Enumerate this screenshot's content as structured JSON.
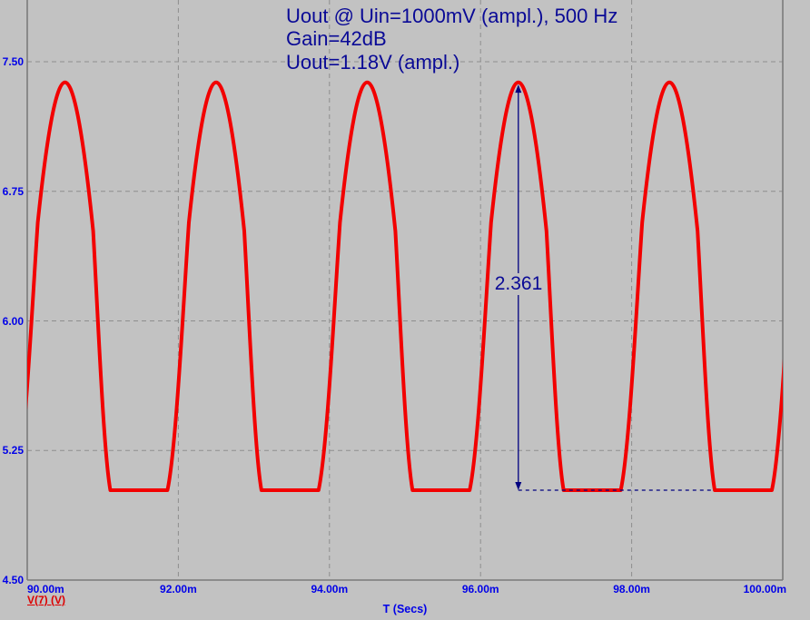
{
  "window": {
    "background": "#c2c2c2"
  },
  "title_block": {
    "lines": [
      "Uout @ Uin=1000mV (ampl.), 500 Hz",
      "Gain=42dB",
      "Uout=1.18V (ampl.)"
    ]
  },
  "colors": {
    "background": "#c2c2c2",
    "grid": "#8e8e8e",
    "border": "#7b7b7b",
    "trace": "#f20000",
    "tick_text": "#0000e8",
    "title_text": "#0a0a96",
    "annotation": "#000080",
    "legend_text": "#dd0000"
  },
  "chart_data": {
    "type": "line",
    "title": "Uout @ Uin=1000mV (ampl.), 500 Hz",
    "annotations_text": [
      "Gain=42dB",
      "Uout=1.18V (ampl.)"
    ],
    "xlabel": "T (Secs)",
    "ylabel": "",
    "grid": true,
    "x_range_ms": [
      90,
      100
    ],
    "y_range_v": [
      4.5,
      7.857
    ],
    "x_ticks": [
      {
        "label": "90.00m",
        "ms": 90,
        "align": "left"
      },
      {
        "label": "92.00m",
        "ms": 92,
        "align": "center"
      },
      {
        "label": "94.00m",
        "ms": 94,
        "align": "center"
      },
      {
        "label": "96.00m",
        "ms": 96,
        "align": "center"
      },
      {
        "label": "98.00m",
        "ms": 98,
        "align": "center"
      },
      {
        "label": "100.00m",
        "ms": 100,
        "align": "right"
      }
    ],
    "y_ticks": [
      {
        "label": "7.50",
        "v": 7.5
      },
      {
        "label": "6.75",
        "v": 6.75
      },
      {
        "label": "6.00",
        "v": 6.0
      },
      {
        "label": "5.25",
        "v": 5.25
      },
      {
        "label": "4.50",
        "v": 4.5
      }
    ],
    "series": [
      {
        "name": "V(7) (V)",
        "color": "#f20000",
        "waveform": {
          "kind": "amplifier-output-clipped-sine",
          "frequency_hz": 500,
          "period_ms": 2,
          "first_peak_t_ms": 90.5,
          "peak_v": 7.38,
          "clip_v": 5.02,
          "rise_shoulder": {
            "dt_ms": -0.36,
            "v": 6.57
          },
          "fall_shoulder": {
            "dt_ms": 0.372,
            "v": 6.52
          },
          "clip_start_dt_ms": 0.6,
          "clip_end_dt_ms": 1.3556
        }
      }
    ],
    "measurement": {
      "label": "2.361",
      "t_ms": 96.5,
      "base_v": 5.02,
      "delta_v": 2.361,
      "dash_end_ms": 99.08
    },
    "legend": {
      "label": "V(7) (V)",
      "position": "bottom-left"
    }
  }
}
